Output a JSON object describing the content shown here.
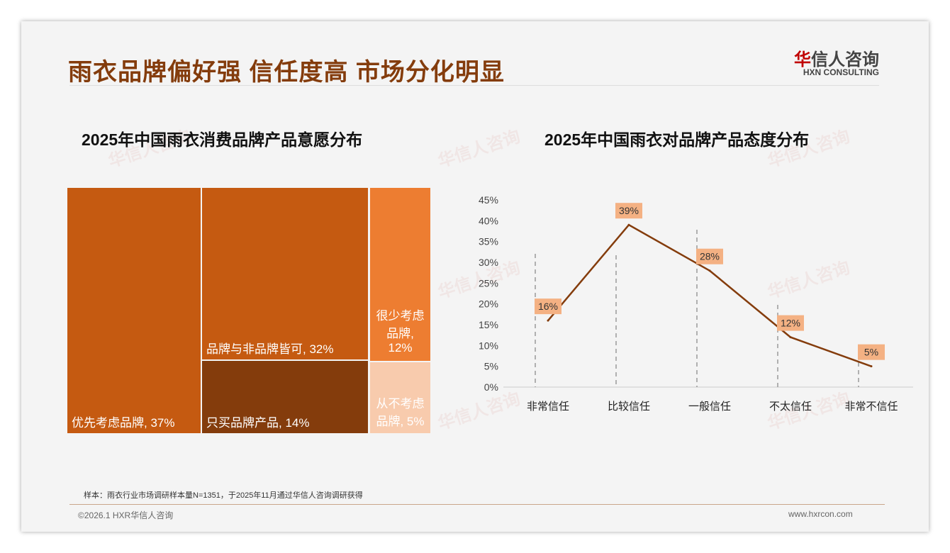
{
  "header": {
    "title": "雨衣品牌偏好强 信任度高 市场分化明显",
    "logo_cn_red": "华",
    "logo_cn": "信人咨询",
    "logo_en": "HXN CONSULTING"
  },
  "watermark": "华信人咨询",
  "footer": {
    "note": "样本：雨衣行业市场调研样本量N=1351，于2025年11月通过华信人咨询调研获得",
    "copyright": "©2026.1 HXR华信人咨询",
    "url": "www.hxrcon.com"
  },
  "colors": {
    "c1": "#C55A11",
    "c2": "#C55A11",
    "c3": "#843C0C",
    "c4": "#ED7D31",
    "c5": "#F8CBAD",
    "line": "#843C0C",
    "label_bg": "#F4B183"
  },
  "chart_data": [
    {
      "type": "treemap",
      "title": "2025年中国雨衣消费品牌产品意愿分布",
      "items": [
        {
          "label": "优先考虑品牌, 37%",
          "value": 37
        },
        {
          "label": "品牌与非品牌皆可, 32%",
          "value": 32
        },
        {
          "label": "只买品牌产品, 14%",
          "value": 14
        },
        {
          "label": "很少考虑品牌, 12%",
          "value": 12
        },
        {
          "label": "从不考虑品牌, 5%",
          "value": 5
        }
      ]
    },
    {
      "type": "line",
      "title": "2025年中国雨衣对品牌产品态度分布",
      "categories": [
        "非常信任",
        "比较信任",
        "一般信任",
        "不太信任",
        "非常不信任"
      ],
      "values": [
        16,
        39,
        28,
        12,
        5
      ],
      "labels": [
        "16%",
        "39%",
        "28%",
        "12%",
        "5%"
      ],
      "yticks": [
        "0%",
        "5%",
        "10%",
        "15%",
        "20%",
        "25%",
        "30%",
        "35%",
        "40%",
        "45%"
      ],
      "ylim": [
        0,
        45
      ],
      "grid": false
    }
  ]
}
